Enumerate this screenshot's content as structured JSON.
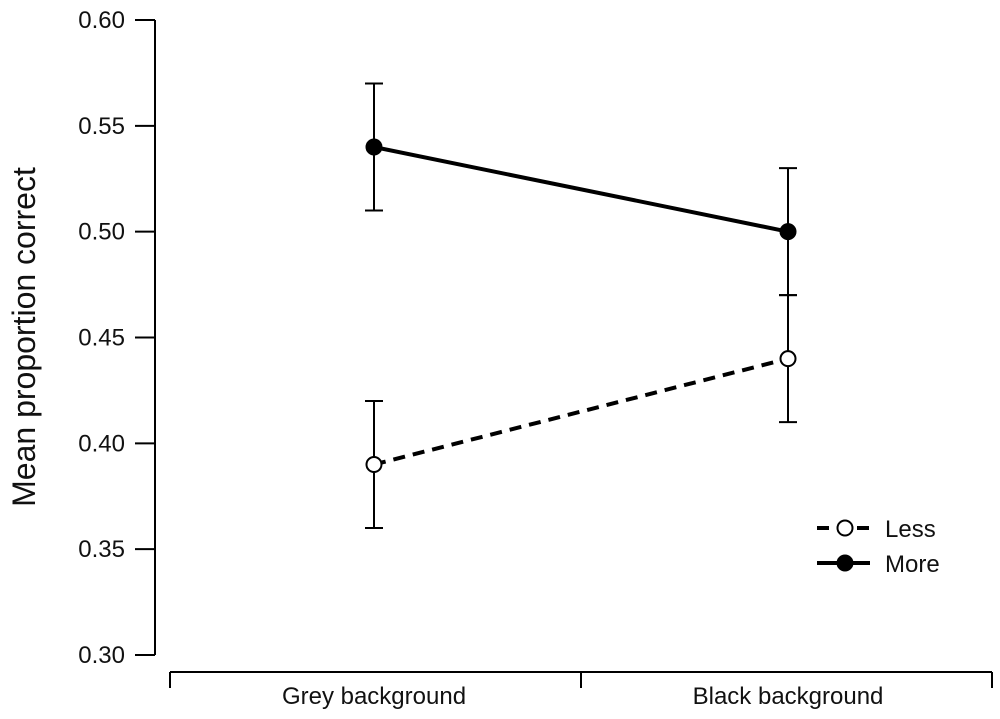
{
  "chart_data": {
    "type": "line",
    "title": "",
    "xlabel": "",
    "ylabel": "Mean proportion correct",
    "categories": [
      "Grey background",
      "Black background"
    ],
    "ylim": [
      0.3,
      0.6
    ],
    "yticks": [
      "0.30",
      "0.35",
      "0.40",
      "0.45",
      "0.50",
      "0.55",
      "0.60"
    ],
    "grid": false,
    "legend_position": "bottom-right",
    "series": [
      {
        "name": "Less",
        "values": [
          0.39,
          0.44
        ],
        "error": [
          0.03,
          0.03
        ],
        "marker": "open-circle",
        "line_style": "dashed",
        "color": "#000000"
      },
      {
        "name": "More",
        "values": [
          0.54,
          0.5
        ],
        "error": [
          0.03,
          0.03
        ],
        "marker": "filled-circle",
        "line_style": "solid",
        "color": "#000000"
      }
    ]
  }
}
